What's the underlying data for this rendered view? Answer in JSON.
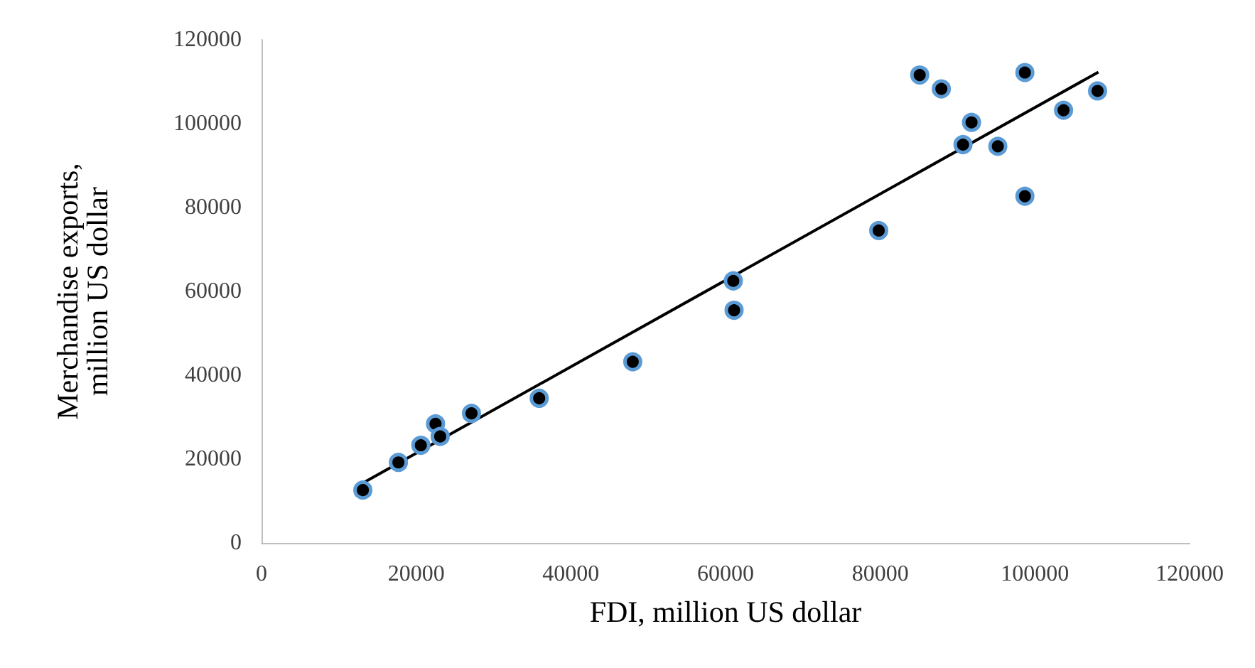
{
  "chart_data": {
    "type": "scatter",
    "xlabel": "FDI, million US dollar",
    "ylabel": "Merchandise exports,\nmillion US dollar",
    "x": [
      13100,
      17700,
      20600,
      22500,
      23100,
      27150,
      35900,
      48000,
      61100,
      61000,
      79800,
      85100,
      87900,
      90700,
      91800,
      95200,
      98700,
      98700,
      103700,
      108100
    ],
    "series": [
      {
        "color": "#000000",
        "marker": "circle",
        "values": [
          12600,
          19200,
          23300,
          28400,
          25400,
          30900,
          34500,
          43200,
          55500,
          62500,
          74500,
          111600,
          108300,
          95000,
          100300,
          94600,
          112200,
          82700,
          103200,
          107800
        ]
      },
      {
        "type": "line",
        "color": "#000000",
        "marker": "none",
        "x": [
          13100,
          108200
        ],
        "values": [
          14300,
          112300
        ]
      }
    ],
    "xlim": [
      0,
      120000
    ],
    "xticks": [
      0,
      20000,
      40000,
      60000,
      80000,
      100000,
      120000
    ],
    "ylim": [
      0,
      120000
    ],
    "yticks": [
      0,
      20000,
      40000,
      60000,
      80000,
      100000,
      120000
    ],
    "grid": false
  }
}
